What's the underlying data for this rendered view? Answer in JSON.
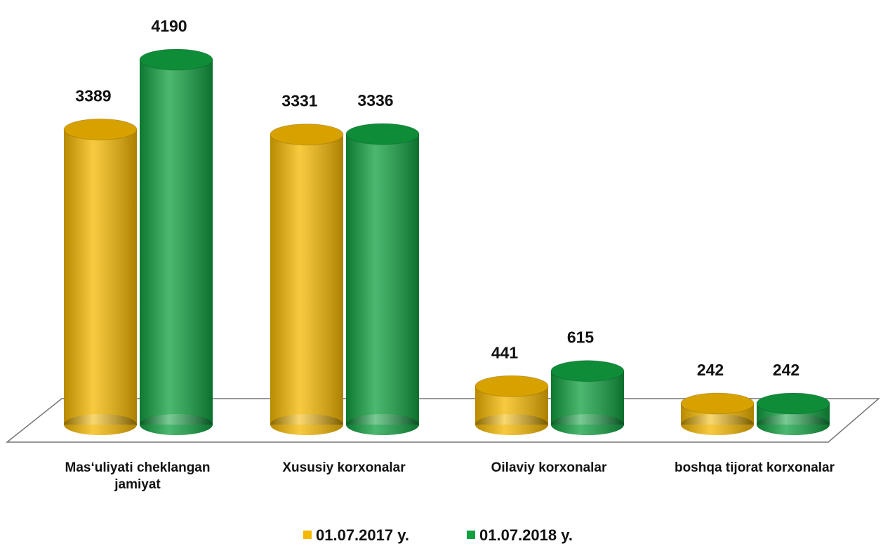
{
  "chart_data": {
    "type": "bar",
    "categories": [
      "Mas‘uliyati cheklangan jamiyat",
      "Xususiy korxonalar",
      "Oilaviy korxonalar",
      "boshqa tijorat korxonalar"
    ],
    "series": [
      {
        "name": "01.07.2017 y.",
        "color": "#f5b800",
        "values": [
          3389,
          3331,
          441,
          242
        ]
      },
      {
        "name": "01.07.2018 y.",
        "color": "#10a040",
        "values": [
          4190,
          3336,
          615,
          242
        ]
      }
    ],
    "legend": "bottom"
  }
}
